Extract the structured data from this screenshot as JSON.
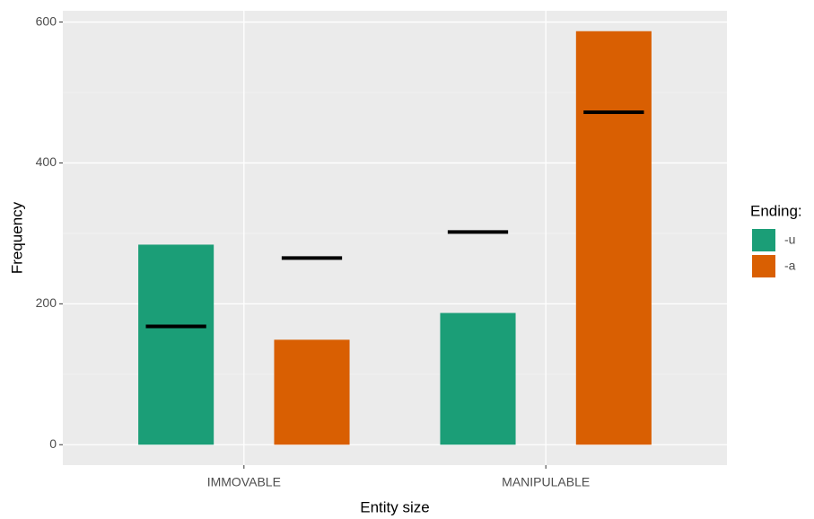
{
  "chart_data": {
    "type": "bar",
    "x_label": "Entity size",
    "y_label": "Frequency",
    "categories": [
      "IMMOVABLE",
      "MANIPULABLE"
    ],
    "series": [
      {
        "name": "-u",
        "color": "#1b9e77",
        "values": [
          284,
          187
        ],
        "expected": [
          168,
          302
        ]
      },
      {
        "name": "-a",
        "color": "#d95f02",
        "values": [
          149,
          587
        ],
        "expected": [
          265,
          472
        ]
      }
    ],
    "ylim": [
      -29,
      616
    ],
    "yticks": [
      0,
      200,
      400,
      600
    ],
    "y_minor_ticks": [
      100,
      300,
      500
    ],
    "grid": true,
    "legend_title": "Ending:",
    "legend_position": "right"
  }
}
